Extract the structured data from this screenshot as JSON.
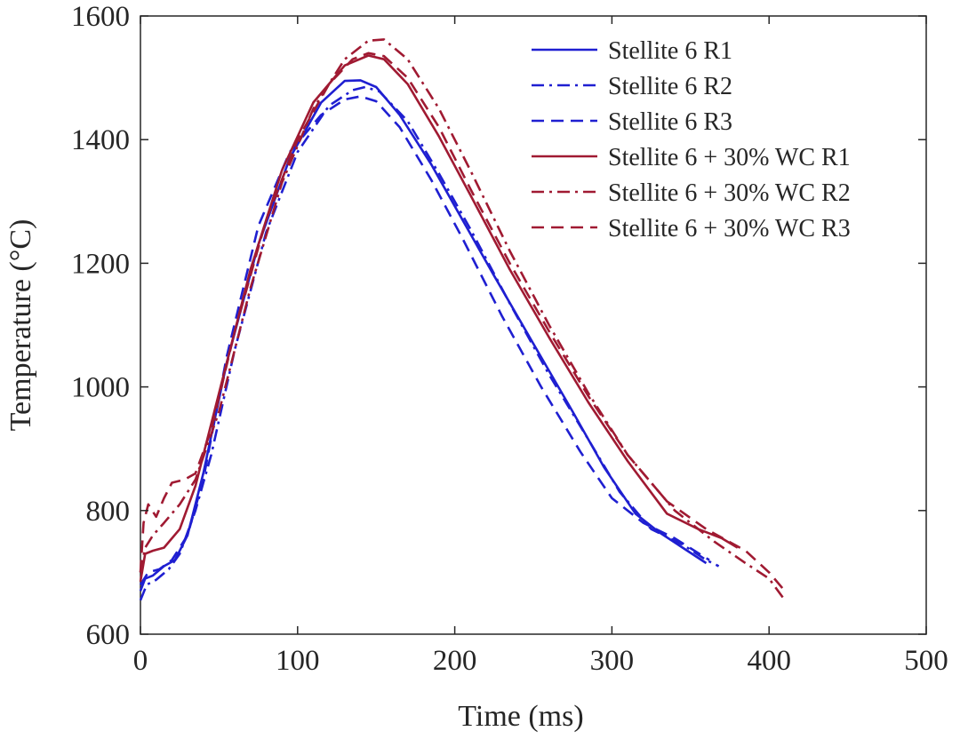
{
  "chart_data": {
    "type": "line",
    "title": "",
    "xlabel": "Time (ms)",
    "ylabel": "Temperature (°C)",
    "xlim": [
      0,
      500
    ],
    "ylim": [
      600,
      1600
    ],
    "xticks": [
      0,
      100,
      200,
      300,
      400,
      500
    ],
    "yticks": [
      600,
      800,
      1000,
      1200,
      1400,
      1600
    ],
    "x_tick_labels": [
      "0",
      "100",
      "200",
      "300",
      "400",
      "500"
    ],
    "y_tick_labels": [
      "600",
      "800",
      "1000",
      "1200",
      "1400",
      "1600"
    ],
    "grid": false,
    "legend_position": "top-right",
    "series": [
      {
        "name": "Stellite 6 R1",
        "color": "#1f1fd1",
        "style": "solid",
        "x": [
          0,
          3,
          8,
          15,
          22,
          30,
          40,
          55,
          75,
          95,
          115,
          130,
          140,
          150,
          165,
          185,
          205,
          225,
          250,
          275,
          295,
          315,
          330,
          345,
          360
        ],
        "y": [
          670,
          690,
          695,
          710,
          720,
          760,
          860,
          1040,
          1230,
          1370,
          1460,
          1495,
          1496,
          1485,
          1440,
          1360,
          1270,
          1180,
          1070,
          960,
          870,
          795,
          765,
          740,
          715
        ]
      },
      {
        "name": "Stellite 6 R2",
        "color": "#1f1fd1",
        "style": "dashdot",
        "x": [
          0,
          4,
          10,
          18,
          25,
          35,
          45,
          60,
          80,
          100,
          120,
          135,
          143,
          152,
          170,
          190,
          210,
          235,
          260,
          285,
          305,
          325,
          345,
          360,
          368
        ],
        "y": [
          655,
          680,
          688,
          705,
          730,
          800,
          890,
          1060,
          1250,
          1380,
          1455,
          1480,
          1485,
          1478,
          1430,
          1345,
          1255,
          1135,
          1020,
          915,
          830,
          770,
          745,
          720,
          710
        ]
      },
      {
        "name": "Stellite 6 R3",
        "color": "#1f1fd1",
        "style": "dashed",
        "x": [
          0,
          5,
          12,
          20,
          30,
          40,
          55,
          75,
          95,
          115,
          130,
          140,
          150,
          165,
          185,
          205,
          230,
          255,
          280,
          300,
          320,
          340,
          362
        ],
        "y": [
          680,
          700,
          705,
          720,
          760,
          850,
          1050,
          1260,
          1380,
          1440,
          1465,
          1470,
          1462,
          1420,
          1335,
          1240,
          1115,
          1000,
          895,
          820,
          780,
          755,
          720
        ]
      },
      {
        "name": "Stellite 6 + 30% WC R1",
        "color": "#a01a32",
        "style": "solid",
        "x": [
          0,
          3,
          8,
          15,
          25,
          35,
          50,
          70,
          90,
          110,
          130,
          145,
          155,
          170,
          190,
          210,
          235,
          260,
          285,
          310,
          335,
          355,
          370,
          380
        ],
        "y": [
          685,
          730,
          735,
          740,
          770,
          840,
          990,
          1190,
          1350,
          1460,
          1520,
          1536,
          1530,
          1490,
          1405,
          1310,
          1190,
          1080,
          975,
          880,
          795,
          770,
          755,
          740
        ]
      },
      {
        "name": "Stellite 6 + 30% WC R2",
        "color": "#a01a32",
        "style": "dashdot",
        "x": [
          0,
          3,
          8,
          15,
          25,
          35,
          50,
          70,
          90,
          110,
          130,
          145,
          155,
          170,
          190,
          210,
          235,
          260,
          285,
          310,
          340,
          365,
          385,
          400,
          410
        ],
        "y": [
          700,
          740,
          760,
          780,
          810,
          850,
          960,
          1160,
          1330,
          1450,
          1530,
          1560,
          1562,
          1530,
          1450,
          1350,
          1220,
          1100,
          990,
          890,
          800,
          750,
          715,
          690,
          655
        ]
      },
      {
        "name": "Stellite 6 + 30% WC R3",
        "color": "#a01a32",
        "style": "dashed",
        "x": [
          0,
          2,
          5,
          10,
          15,
          20,
          28,
          35,
          45,
          60,
          80,
          100,
          120,
          135,
          145,
          155,
          170,
          190,
          210,
          235,
          260,
          285,
          310,
          335,
          360,
          385,
          400,
          410
        ],
        "y": [
          700,
          780,
          810,
          790,
          820,
          845,
          850,
          860,
          930,
          1090,
          1270,
          1400,
          1490,
          1530,
          1540,
          1535,
          1500,
          1420,
          1320,
          1200,
          1090,
          985,
          890,
          815,
          770,
          735,
          700,
          670
        ]
      }
    ]
  }
}
